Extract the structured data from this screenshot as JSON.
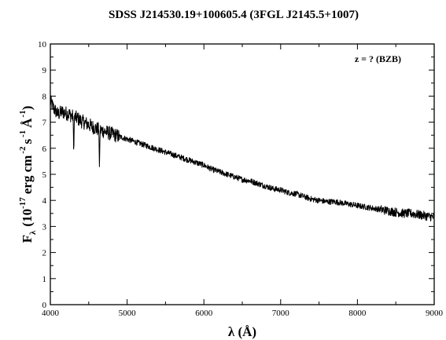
{
  "chart_data": {
    "type": "line",
    "title": "SDSS J214530.19+100605.4 (3FGL J2145.5+1007)",
    "annotation": "z = ? (BZB)",
    "xlabel": "λ (Å)",
    "ylabel": {
      "main": "F",
      "sub": "λ",
      "open": "(10",
      "exp1": "-17",
      "unit1": "erg cm",
      "exp2": "-2",
      "unit2": "s",
      "exp3": "-1",
      "unit3": "Å",
      "exp4": "-1",
      "close": ")"
    },
    "xlim": [
      4000,
      9000
    ],
    "ylim": [
      0,
      10
    ],
    "xticks": [
      "4000",
      "5000",
      "6000",
      "7000",
      "8000",
      "9000"
    ],
    "yticks": [
      "0",
      "1",
      "2",
      "3",
      "4",
      "5",
      "6",
      "7",
      "8",
      "9",
      "10"
    ],
    "series": [
      {
        "x": [
          4000,
          4050,
          4100,
          4150,
          4200,
          4250,
          4300,
          4350,
          4400,
          4500,
          4600,
          4700,
          4800,
          4900,
          5000,
          5100,
          5200,
          5300,
          5400,
          5500,
          5600,
          5700,
          5800,
          5900,
          6000,
          6100,
          6200,
          6300,
          6400,
          6500,
          6600,
          6700,
          6800,
          6900,
          7000,
          7100,
          7200,
          7300,
          7400,
          7500,
          7600,
          7700,
          7800,
          7900,
          8000,
          8100,
          8200,
          8300,
          8400,
          8500,
          8600,
          8700,
          8800,
          8900,
          9000
        ],
        "y": [
          7.8,
          7.5,
          7.3,
          7.4,
          7.35,
          7.3,
          7.2,
          7.15,
          7.05,
          6.9,
          6.75,
          6.65,
          6.55,
          6.45,
          6.35,
          6.25,
          6.15,
          6.05,
          5.95,
          5.85,
          5.75,
          5.65,
          5.55,
          5.45,
          5.35,
          5.2,
          5.1,
          5.0,
          4.9,
          4.8,
          4.75,
          4.65,
          4.55,
          4.45,
          4.4,
          4.3,
          4.25,
          4.15,
          4.05,
          4.0,
          3.95,
          3.95,
          3.9,
          3.85,
          3.8,
          3.75,
          3.7,
          3.65,
          3.6,
          3.55,
          3.5,
          3.5,
          3.45,
          3.4,
          3.35
        ]
      }
    ],
    "features": [
      {
        "x": 4305,
        "y": 5.7
      },
      {
        "x": 4640,
        "y": 5.15
      }
    ],
    "grid": false,
    "color": "#000000"
  }
}
